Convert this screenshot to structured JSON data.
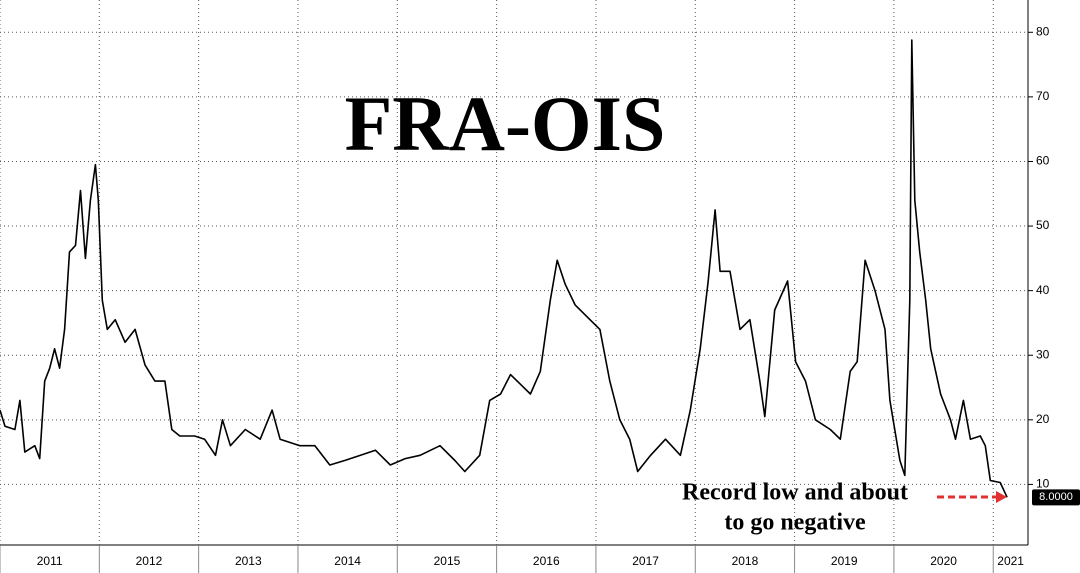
{
  "chart_data": {
    "type": "line",
    "title": "FRA-OIS",
    "annotation": [
      "Record low and about",
      "to go negative"
    ],
    "end_label": "8.0000",
    "color": "#000000",
    "x": [
      2011.0,
      2011.05,
      2011.15,
      2011.2,
      2011.25,
      2011.35,
      2011.4,
      2011.45,
      2011.5,
      2011.55,
      2011.6,
      2011.65,
      2011.7,
      2011.76,
      2011.81,
      2011.86,
      2011.91,
      2011.96,
      2011.99,
      2012.03,
      2012.08,
      2012.16,
      2012.26,
      2012.36,
      2012.46,
      2012.56,
      2012.66,
      2012.73,
      2012.81,
      2012.96,
      2013.06,
      2013.17,
      2013.24,
      2013.32,
      2013.47,
      2013.62,
      2013.74,
      2013.82,
      2014.02,
      2014.17,
      2014.32,
      2014.47,
      2014.63,
      2014.78,
      2014.93,
      2015.08,
      2015.23,
      2015.43,
      2015.58,
      2015.68,
      2015.83,
      2015.93,
      2016.04,
      2016.14,
      2016.24,
      2016.34,
      2016.44,
      2016.54,
      2016.61,
      2016.69,
      2016.79,
      2016.94,
      2017.04,
      2017.14,
      2017.24,
      2017.34,
      2017.42,
      2017.55,
      2017.7,
      2017.85,
      2017.95,
      2018.05,
      2018.13,
      2018.2,
      2018.25,
      2018.35,
      2018.45,
      2018.55,
      2018.65,
      2018.7,
      2018.8,
      2018.93,
      2019.01,
      2019.11,
      2019.21,
      2019.36,
      2019.46,
      2019.56,
      2019.63,
      2019.71,
      2019.81,
      2019.91,
      2019.96,
      2020.06,
      2020.11,
      2020.16,
      2020.18,
      2020.21,
      2020.26,
      2020.32,
      2020.37,
      2020.47,
      2020.57,
      2020.62,
      2020.7,
      2020.77,
      2020.87,
      2020.92,
      2020.97,
      2021.07,
      2021.14
    ],
    "values": [
      21.5,
      19,
      18.5,
      23,
      15,
      16,
      14,
      26,
      28,
      31,
      28,
      34,
      46,
      47,
      55.5,
      45,
      54,
      59.5,
      54,
      38.5,
      34,
      35.5,
      32,
      34,
      28.5,
      26,
      26,
      18.5,
      17.5,
      17.5,
      17,
      14.5,
      20,
      16,
      18.5,
      17,
      21.5,
      17,
      16,
      16,
      13,
      13.7,
      14.5,
      15.3,
      13,
      14,
      14.5,
      16,
      13.7,
      12,
      14.5,
      23,
      24,
      27,
      25.5,
      24,
      27.5,
      38.5,
      44.7,
      41,
      37.8,
      35.5,
      34,
      26,
      20,
      17,
      12,
      14.5,
      17,
      14.5,
      21.5,
      31,
      41.5,
      52.5,
      43,
      43,
      34,
      35.5,
      26,
      20.5,
      37,
      41.5,
      29,
      26,
      20,
      18.5,
      17,
      27.5,
      29,
      44.7,
      40,
      34,
      23,
      13.7,
      11.4,
      38.5,
      78.8,
      54,
      46,
      38.5,
      31,
      24,
      20,
      17,
      23,
      17,
      17.5,
      16,
      10.6,
      10.3,
      8
    ],
    "xlim": [
      2011,
      2021.35
    ],
    "xticks": [
      2011,
      2012,
      2013,
      2014,
      2015,
      2016,
      2017,
      2018,
      2019,
      2020,
      2021
    ],
    "ylim": [
      0,
      85
    ],
    "yticks": [
      10,
      20,
      30,
      40,
      50,
      60,
      70,
      80
    ],
    "grid": true
  }
}
